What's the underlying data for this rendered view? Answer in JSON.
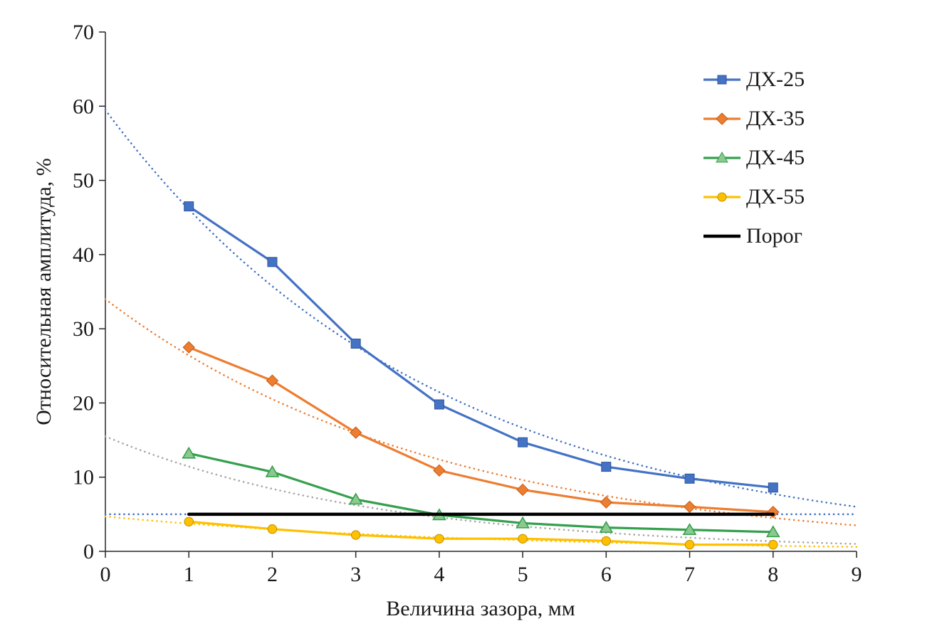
{
  "chart_data": {
    "type": "line",
    "title": "",
    "xlabel": "Величина зазора, мм",
    "ylabel": "Относительная амплитуда, %",
    "xlim": [
      0,
      9
    ],
    "ylim": [
      0,
      70
    ],
    "xticks": [
      0,
      1,
      2,
      3,
      4,
      5,
      6,
      7,
      8,
      9
    ],
    "yticks": [
      0,
      10,
      20,
      30,
      40,
      50,
      60,
      70
    ],
    "grid": false,
    "legend_position": "top-right",
    "x": [
      1,
      2,
      3,
      4,
      5,
      6,
      7,
      8
    ],
    "series": [
      {
        "name": "ДХ-25",
        "color": "#4472C4",
        "marker": "square",
        "markerFill": "#4472C4",
        "markerStroke": "#2F5597",
        "lineWidth": 3.25,
        "values": [
          46.5,
          39.0,
          28.0,
          19.8,
          14.7,
          11.4,
          9.8,
          8.6
        ]
      },
      {
        "name": "ДХ-35",
        "color": "#ED7D31",
        "marker": "diamond",
        "markerFill": "#ED7D31",
        "markerStroke": "#C55A11",
        "lineWidth": 3.25,
        "values": [
          27.5,
          23.0,
          16.0,
          10.9,
          8.3,
          6.6,
          6.0,
          5.3
        ]
      },
      {
        "name": "ДХ-45",
        "color": "#35A04E",
        "marker": "triangle",
        "markerFill": "#8CC98F",
        "markerStroke": "#35A04E",
        "lineWidth": 3.25,
        "values": [
          13.2,
          10.7,
          7.0,
          4.9,
          3.8,
          3.2,
          2.9,
          2.6
        ]
      },
      {
        "name": "ДХ-55",
        "color": "#FFC000",
        "marker": "circle",
        "markerFill": "#FFC000",
        "markerStroke": "#BF9000",
        "lineWidth": 3.25,
        "values": [
          4.0,
          3.0,
          2.2,
          1.7,
          1.7,
          1.4,
          0.9,
          0.9
        ]
      },
      {
        "name": "Порог",
        "color": "#000000",
        "marker": "none",
        "lineWidth": 4.5,
        "x": [
          1,
          8
        ],
        "values": [
          5,
          5
        ]
      }
    ],
    "trendlines": [
      {
        "series": "ДХ-25",
        "color": "#4472C4",
        "type": "exponential",
        "y_at_0": 59.5,
        "y_at_9": 6.0
      },
      {
        "series": "ДХ-35",
        "color": "#ED7D31",
        "type": "exponential",
        "y_at_0": 34.0,
        "y_at_9": 3.5
      },
      {
        "series": "ДХ-45",
        "color": "#A5A5A5",
        "type": "exponential",
        "y_at_0": 15.5,
        "y_at_9": 1.0
      },
      {
        "series": "ДХ-55",
        "color": "#FFC000",
        "type": "exponential",
        "y_at_0": 4.7,
        "y_at_9": 0.6
      },
      {
        "series": "Порог",
        "color": "#4472C4",
        "type": "constant",
        "y": 5.0
      }
    ],
    "axis_color": "#262626",
    "tick_label_color": "#1a1a1a"
  }
}
